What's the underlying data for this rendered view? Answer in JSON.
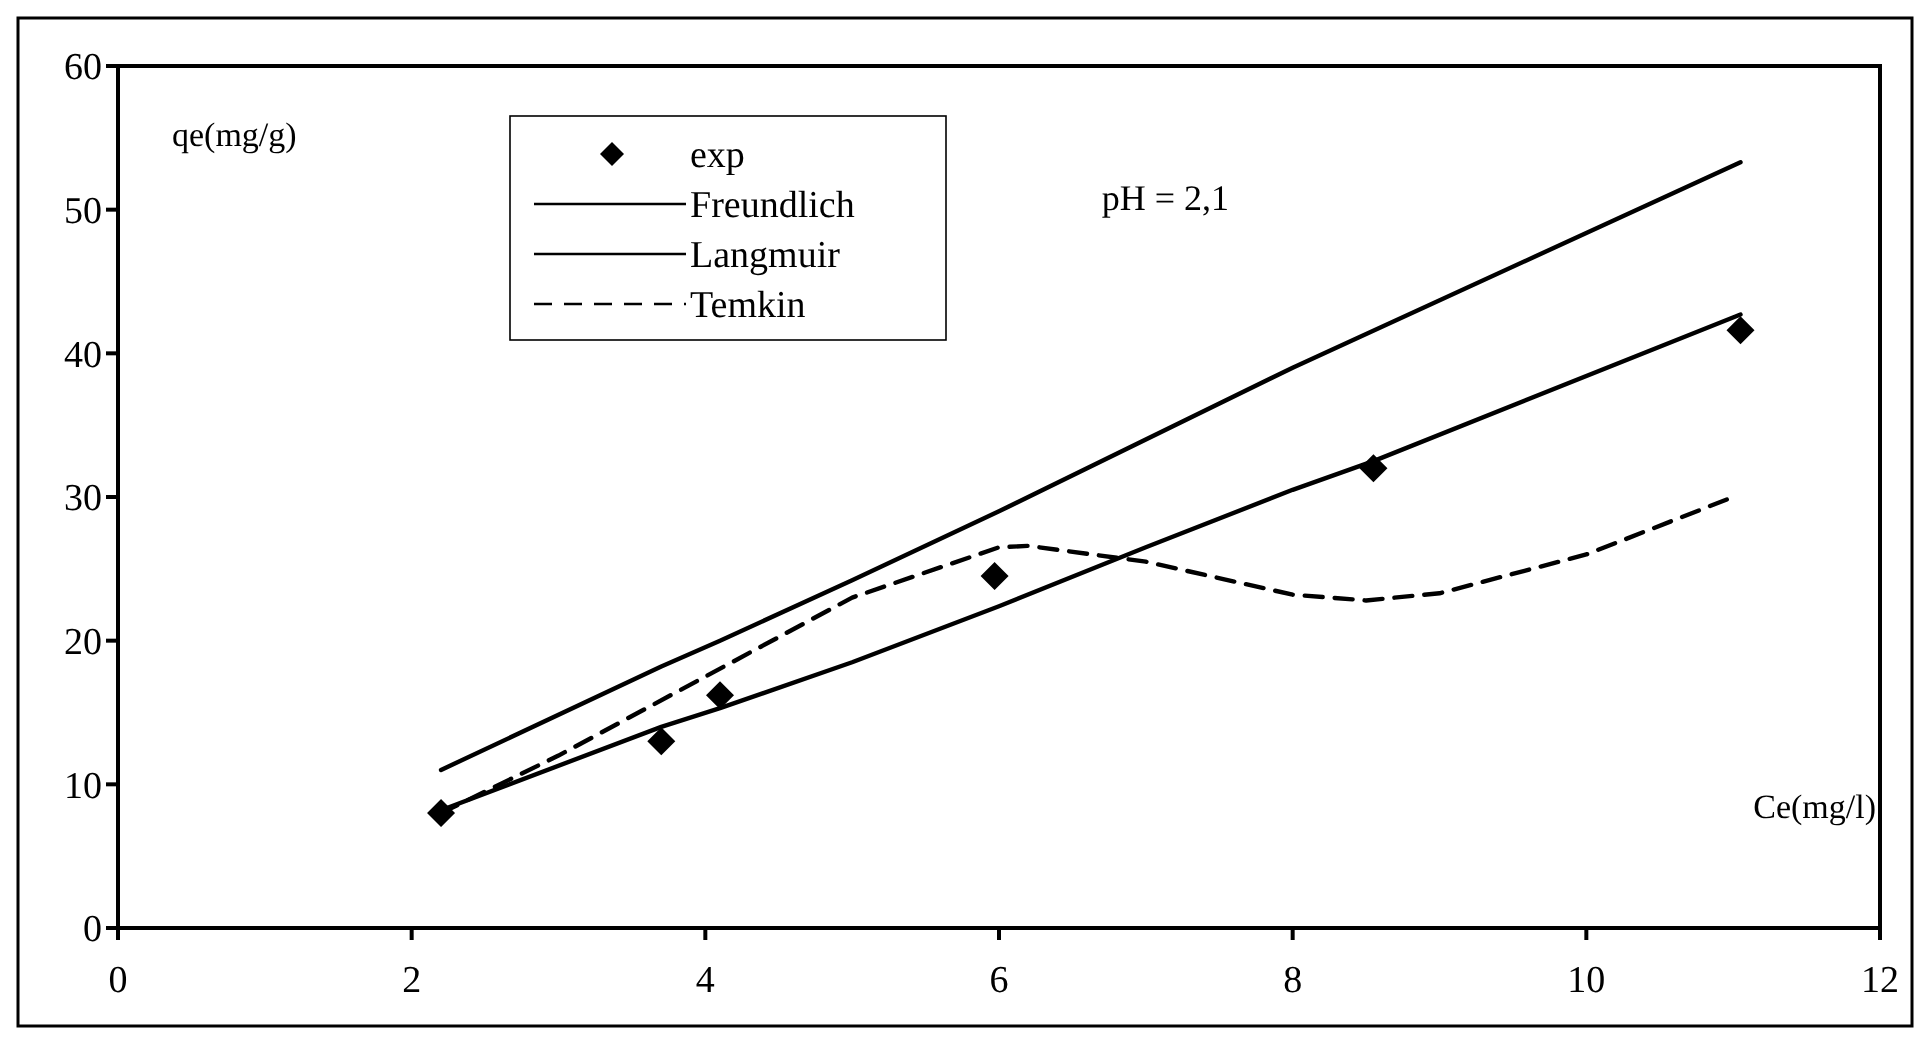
{
  "chart_data": {
    "type": "line",
    "xlabel": "Ce(mg/l)",
    "ylabel": "qe(mg/g)",
    "annotations": [
      "pH = 2,1"
    ],
    "xlim": [
      0,
      12
    ],
    "ylim": [
      0,
      60
    ],
    "xticks": [
      0,
      2,
      4,
      6,
      8,
      10,
      12
    ],
    "yticks": [
      0,
      10,
      20,
      30,
      40,
      50,
      60
    ],
    "grid": false,
    "legend": "top left",
    "series": [
      {
        "name": "exp",
        "type": "scatter",
        "marker": "diamond",
        "color": "#000000",
        "x": [
          2.2,
          3.7,
          4.1,
          5.97,
          8.55,
          11.05
        ],
        "values": [
          8,
          13,
          16.2,
          24.5,
          32,
          41.6
        ]
      },
      {
        "name": "Freundlich",
        "type": "line",
        "line_style": "solid",
        "color": "#000000",
        "x": [
          2.2,
          3.7,
          4.1,
          5,
          6,
          8,
          11.05
        ],
        "values": [
          11,
          18.2,
          20,
          24.2,
          29,
          39,
          53.3
        ]
      },
      {
        "name": "Langmuir",
        "type": "line",
        "line_style": "solid",
        "color": "#000000",
        "x": [
          2.2,
          3.7,
          4.1,
          5,
          6,
          7,
          8,
          8.55,
          11.05
        ],
        "values": [
          8.2,
          14,
          15.3,
          18.5,
          22.4,
          26.5,
          30.5,
          32.5,
          42.7
        ]
      },
      {
        "name": "Temkin",
        "type": "line",
        "line_style": "dashed",
        "color": "#000000",
        "x": [
          2.2,
          3,
          4,
          5,
          6,
          6.2,
          7,
          8,
          8.5,
          9,
          10,
          11
        ],
        "values": [
          8,
          12,
          17.5,
          23,
          26.5,
          26.6,
          25.5,
          23.2,
          22.8,
          23.3,
          26,
          30
        ]
      }
    ]
  }
}
